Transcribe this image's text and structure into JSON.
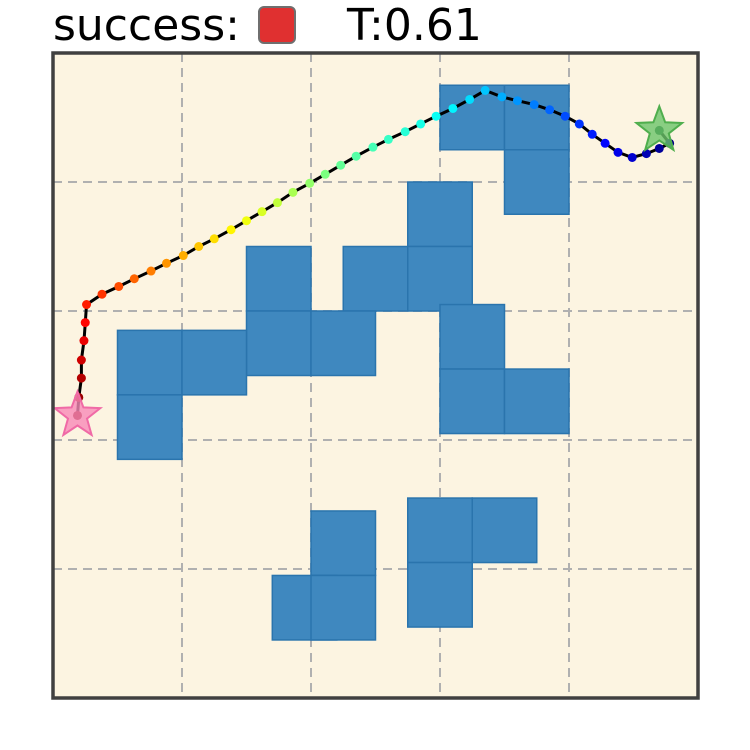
{
  "header": {
    "success_label": "success:",
    "success_color": "#e03030",
    "t_label": "T:0.61"
  },
  "colors": {
    "background": "#fcf4e1",
    "frame": "#404040",
    "grid": "#b0b0b0",
    "obstacle_fill": "#3f88bf",
    "obstacle_edge": "#2a74ad",
    "path": "#000000",
    "start_star": "#f78ab8",
    "goal_star": "#6cc46a"
  },
  "chart_data": {
    "type": "scatter",
    "title": "",
    "xlabel": "",
    "ylabel": "",
    "xlim": [
      0,
      5
    ],
    "ylim": [
      0,
      5
    ],
    "grid": true,
    "grid_ticks": [
      1,
      2,
      3,
      4
    ],
    "obstacles": [
      [
        3.25,
        4.5
      ],
      [
        3.75,
        4.5
      ],
      [
        3.75,
        4.0
      ],
      [
        3.0,
        3.75
      ],
      [
        2.5,
        3.25
      ],
      [
        3.0,
        3.25
      ],
      [
        1.75,
        3.25
      ],
      [
        1.75,
        2.75
      ],
      [
        2.25,
        2.75
      ],
      [
        0.75,
        2.6
      ],
      [
        1.25,
        2.6
      ],
      [
        0.75,
        2.1
      ],
      [
        3.25,
        2.8
      ],
      [
        3.25,
        2.3
      ],
      [
        3.75,
        2.3
      ],
      [
        2.25,
        1.2
      ],
      [
        1.95,
        0.7
      ],
      [
        2.25,
        0.7
      ],
      [
        3.0,
        1.3
      ],
      [
        3.5,
        1.3
      ],
      [
        3.0,
        0.8
      ]
    ],
    "obstacle_size": 0.5,
    "start": [
      0.19,
      2.19
    ],
    "goal": [
      4.7,
      4.4
    ],
    "trajectory": [
      [
        0.19,
        2.19
      ],
      [
        0.2,
        2.33
      ],
      [
        0.22,
        2.48
      ],
      [
        0.22,
        2.62
      ],
      [
        0.24,
        2.77
      ],
      [
        0.25,
        2.91
      ],
      [
        0.26,
        3.05
      ],
      [
        0.38,
        3.13
      ],
      [
        0.51,
        3.19
      ],
      [
        0.63,
        3.25
      ],
      [
        0.76,
        3.31
      ],
      [
        0.88,
        3.37
      ],
      [
        1.01,
        3.43
      ],
      [
        1.13,
        3.5
      ],
      [
        1.25,
        3.56
      ],
      [
        1.38,
        3.63
      ],
      [
        1.5,
        3.7
      ],
      [
        1.62,
        3.77
      ],
      [
        1.74,
        3.84
      ],
      [
        1.86,
        3.92
      ],
      [
        1.99,
        3.99
      ],
      [
        2.11,
        4.06
      ],
      [
        2.23,
        4.13
      ],
      [
        2.35,
        4.2
      ],
      [
        2.48,
        4.27
      ],
      [
        2.6,
        4.33
      ],
      [
        2.73,
        4.39
      ],
      [
        2.85,
        4.45
      ],
      [
        2.97,
        4.51
      ],
      [
        3.1,
        4.57
      ],
      [
        3.23,
        4.64
      ],
      [
        3.35,
        4.71
      ],
      [
        3.48,
        4.66
      ],
      [
        3.6,
        4.63
      ],
      [
        3.73,
        4.6
      ],
      [
        3.85,
        4.56
      ],
      [
        3.97,
        4.51
      ],
      [
        4.08,
        4.45
      ],
      [
        4.18,
        4.37
      ],
      [
        4.28,
        4.3
      ],
      [
        4.38,
        4.23
      ],
      [
        4.49,
        4.19
      ],
      [
        4.6,
        4.22
      ],
      [
        4.7,
        4.26
      ],
      [
        4.78,
        4.3
      ],
      [
        4.7,
        4.4
      ]
    ]
  }
}
